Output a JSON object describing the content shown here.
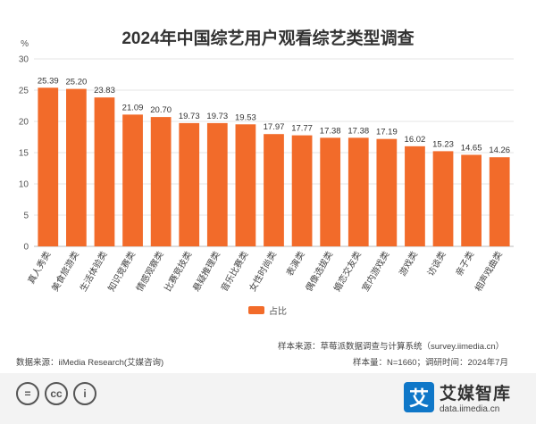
{
  "chart_data": {
    "type": "bar",
    "title": "2024年中国综艺用户观看综艺类型调查",
    "ylabel": "%",
    "ylim": [
      0,
      30
    ],
    "yticks": [
      0,
      5,
      10,
      15,
      20,
      25,
      30
    ],
    "grid": true,
    "legend_position": "bottom",
    "categories": [
      "真人秀类",
      "美食旅游类",
      "生活体验类",
      "知识竞赛类",
      "情感观察类",
      "比赛竞技类",
      "悬疑推理类",
      "音乐比赛类",
      "女性时尚类",
      "表演类",
      "偶像选拔类",
      "婚恋交友类",
      "室内游戏类",
      "游戏类",
      "访谈类",
      "亲子类",
      "相声戏曲类"
    ],
    "series": [
      {
        "name": "占比",
        "color": "#f26b2a",
        "values": [
          25.39,
          25.2,
          23.83,
          21.09,
          20.7,
          19.73,
          19.73,
          19.53,
          17.97,
          17.77,
          17.38,
          17.38,
          17.19,
          16.02,
          15.23,
          14.65,
          14.26
        ],
        "labels": [
          "25.39",
          "25.20",
          "23.83",
          "21.09",
          "20.70",
          "19.73",
          "19.73",
          "19.53",
          "17.97",
          "17.77",
          "17.38",
          "17.38",
          "17.19",
          "16.02",
          "15.23",
          "14.65",
          "14.26"
        ]
      }
    ]
  },
  "sources": {
    "sample_source": "样本来源：草莓派数据调查与计算系统（survey.iimedia.cn）",
    "data_source": "数据来源：iiMedia Research(艾媒咨询)",
    "sample_info": "样本量：N=1660；调研时间：2024年7月"
  },
  "footer": {
    "cc_labels": [
      "=",
      "cc",
      "i"
    ],
    "brand_logo_char": "艾",
    "brand_name": "艾媒智库",
    "brand_url": "data.iimedia.cn"
  }
}
